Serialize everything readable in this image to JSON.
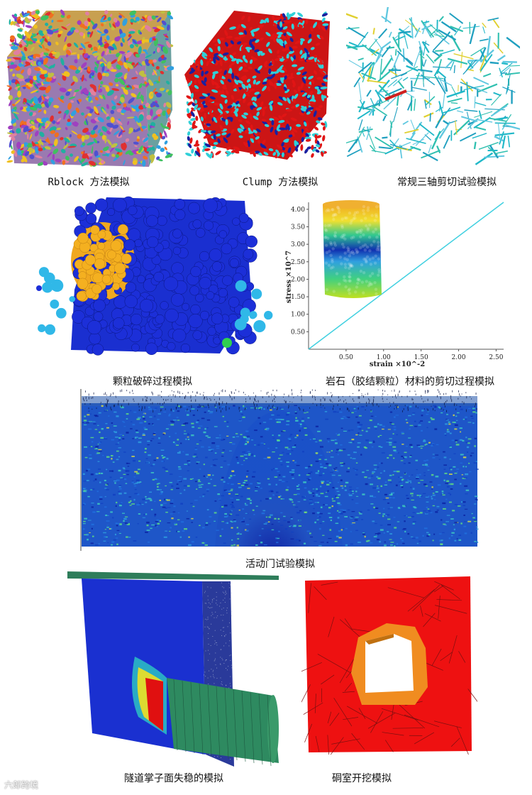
{
  "figures": {
    "rblock": {
      "caption": "Rblock 方法模拟"
    },
    "clump": {
      "caption": "Clump 方法模拟"
    },
    "triaxial": {
      "caption": "常规三轴剪切试验模拟"
    },
    "breakage": {
      "caption": "颗粒破碎过程模拟"
    },
    "rock_shear": {
      "caption": "岩石（胶结颗粒）材料的剪切过程模拟"
    },
    "trapdoor": {
      "caption": "活动门试验模拟"
    },
    "tunnel_face": {
      "caption": "隧道掌子面失稳的模拟"
    },
    "chamber": {
      "caption": "硐室开挖模拟"
    }
  },
  "chart_data": {
    "type": "line",
    "xlabel": "strain ×10^-2",
    "ylabel": "stress ×10^7",
    "x_ticks": [
      "0.50",
      "1.00",
      "1.50",
      "2.00",
      "2.50"
    ],
    "y_ticks": [
      "0.50",
      "1.00",
      "1.50",
      "2.00",
      "2.50",
      "3.00",
      "3.50",
      "4.00"
    ],
    "xlim": [
      0,
      2.6
    ],
    "ylim": [
      0,
      4.2
    ],
    "series": [
      {
        "x": [
          0,
          2.6
        ],
        "y": [
          0,
          4.2
        ],
        "color": "#40d0e0"
      }
    ]
  },
  "watermark": {
    "text": "六郎跨境"
  },
  "colors": {
    "blue": "#1a2fd0",
    "red": "#e01010",
    "orange": "#f0a020",
    "cyan": "#30c8d8",
    "green": "#2e7d5a"
  }
}
